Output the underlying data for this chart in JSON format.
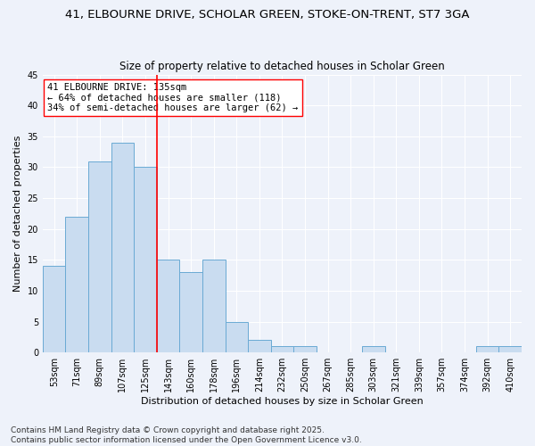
{
  "title_line1": "41, ELBOURNE DRIVE, SCHOLAR GREEN, STOKE-ON-TRENT, ST7 3GA",
  "title_line2": "Size of property relative to detached houses in Scholar Green",
  "xlabel": "Distribution of detached houses by size in Scholar Green",
  "ylabel": "Number of detached properties",
  "bar_color": "#c9dcf0",
  "bar_edge_color": "#6aaad4",
  "categories": [
    "53sqm",
    "71sqm",
    "89sqm",
    "107sqm",
    "125sqm",
    "143sqm",
    "160sqm",
    "178sqm",
    "196sqm",
    "214sqm",
    "232sqm",
    "250sqm",
    "267sqm",
    "285sqm",
    "303sqm",
    "321sqm",
    "339sqm",
    "357sqm",
    "374sqm",
    "392sqm",
    "410sqm"
  ],
  "values": [
    14,
    22,
    31,
    34,
    30,
    15,
    13,
    15,
    5,
    2,
    1,
    1,
    0,
    0,
    1,
    0,
    0,
    0,
    0,
    1,
    1
  ],
  "ylim": [
    0,
    45
  ],
  "yticks": [
    0,
    5,
    10,
    15,
    20,
    25,
    30,
    35,
    40,
    45
  ],
  "red_line_x": 4.5,
  "annotation_text": "41 ELBOURNE DRIVE: 135sqm\n← 64% of detached houses are smaller (118)\n34% of semi-detached houses are larger (62) →",
  "footer_line1": "Contains HM Land Registry data © Crown copyright and database right 2025.",
  "footer_line2": "Contains public sector information licensed under the Open Government Licence v3.0.",
  "background_color": "#eef2fa",
  "grid_color": "#ffffff",
  "title_fontsize": 9.5,
  "subtitle_fontsize": 8.5,
  "axis_label_fontsize": 8,
  "tick_fontsize": 7,
  "annotation_fontsize": 7.5,
  "footer_fontsize": 6.5
}
